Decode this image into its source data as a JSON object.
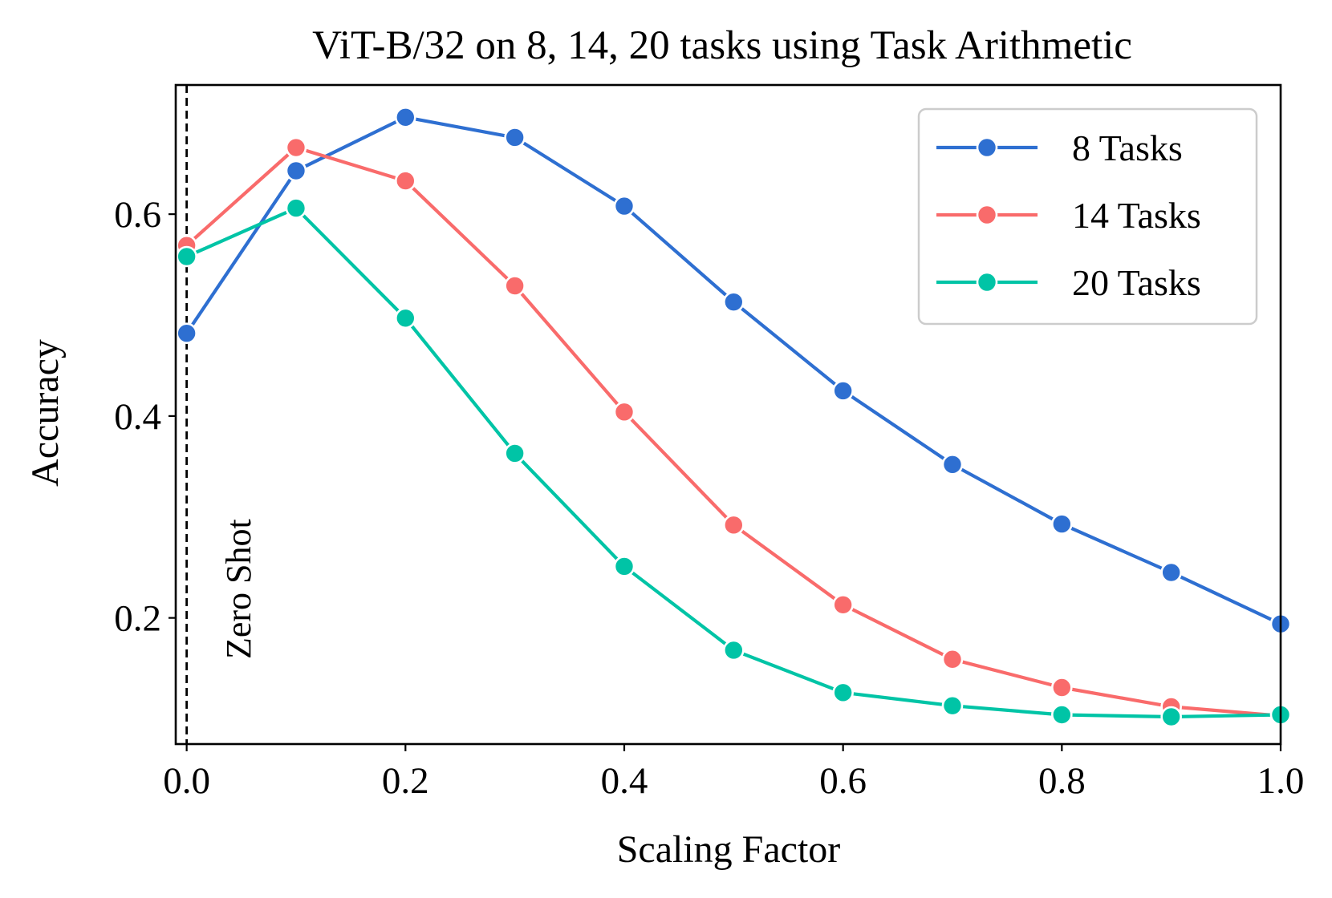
{
  "chart_data": {
    "type": "line",
    "title": "ViT-B/32 on 8, 14, 20 tasks using Task Arithmetic",
    "xlabel": "Scaling Factor",
    "ylabel": "Accuracy",
    "xlim": [
      -0.01,
      1.0
    ],
    "ylim": [
      0.075,
      0.728
    ],
    "x_ticks": [
      {
        "value": 0.0,
        "label": "0.0"
      },
      {
        "value": 0.2,
        "label": "0.2"
      },
      {
        "value": 0.4,
        "label": "0.4"
      },
      {
        "value": 0.6,
        "label": "0.6"
      },
      {
        "value": 0.8,
        "label": "0.8"
      },
      {
        "value": 1.0,
        "label": "1.0"
      }
    ],
    "y_ticks": [
      {
        "value": 0.2,
        "label": "0.2"
      },
      {
        "value": 0.4,
        "label": "0.4"
      },
      {
        "value": 0.6,
        "label": "0.6"
      }
    ],
    "x": [
      0.0,
      0.1,
      0.2,
      0.3,
      0.4,
      0.5,
      0.6,
      0.7,
      0.8,
      0.9,
      1.0
    ],
    "series": [
      {
        "name": "8 Tasks",
        "color": "#2e6fd1",
        "values": [
          0.482,
          0.643,
          0.696,
          0.676,
          0.608,
          0.513,
          0.425,
          0.352,
          0.293,
          0.245,
          0.194
        ]
      },
      {
        "name": "14 Tasks",
        "color": "#f96b6b",
        "values": [
          0.569,
          0.666,
          0.633,
          0.529,
          0.404,
          0.292,
          0.213,
          0.159,
          0.131,
          0.112,
          0.103
        ]
      },
      {
        "name": "20 Tasks",
        "color": "#00c4a6",
        "values": [
          0.558,
          0.606,
          0.497,
          0.363,
          0.251,
          0.168,
          0.126,
          0.113,
          0.104,
          0.102,
          0.104
        ]
      }
    ],
    "vline": {
      "x": 0.0,
      "style": "dashed",
      "color": "#000000",
      "label": "Zero Shot"
    },
    "legend_position": "top-right",
    "grid": false
  }
}
